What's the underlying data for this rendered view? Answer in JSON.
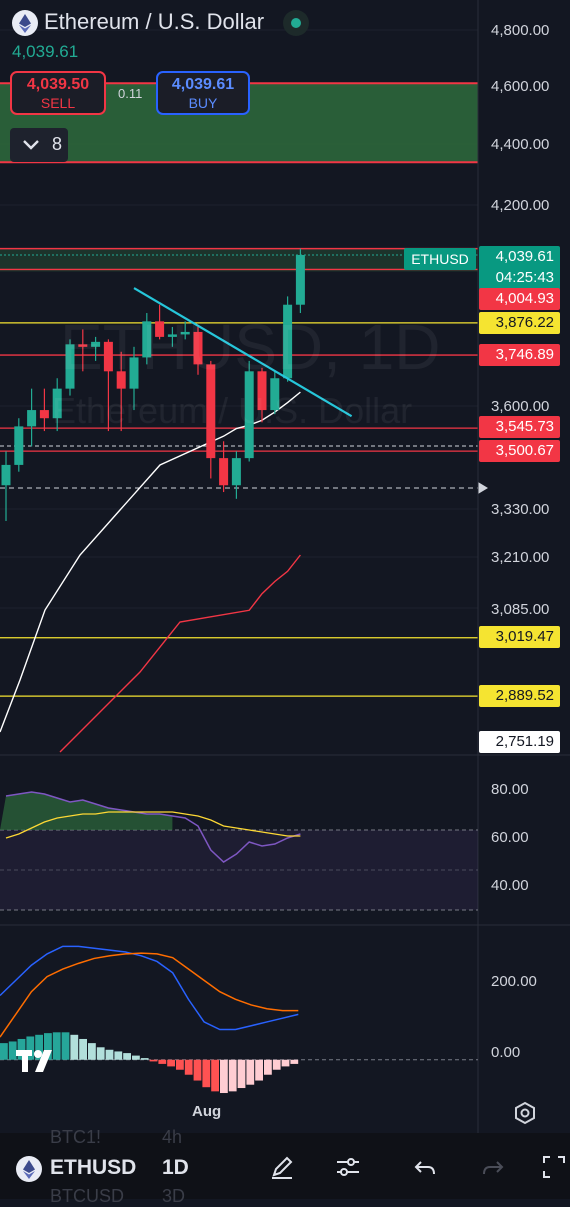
{
  "header": {
    "title": "Ethereum / U.S. Dollar",
    "last_price": "4,039.61",
    "sell_price": "4,039.50",
    "sell_label": "SELL",
    "spread": "0.11",
    "buy_price": "4,039.61",
    "buy_label": "BUY",
    "indicator_count": "8",
    "icons": [
      "ethereum-icon",
      "live-status-icon",
      "chevron-down-icon"
    ]
  },
  "watermark": {
    "symbol": "ETHUSD, 1D",
    "name": "Ethereum / U.S. Dollar"
  },
  "price_axis": {
    "labels": [
      "4,800.00",
      "4,600.00",
      "4,400.00",
      "4,200.00",
      "3,600.00",
      "3,330.00",
      "3,210.00",
      "3,085.00"
    ],
    "price_tags": [
      {
        "text": "4,004.93",
        "style": "red"
      },
      {
        "text": "3,876.22",
        "style": "yellow"
      },
      {
        "text": "3,746.89",
        "style": "red"
      },
      {
        "text": "3,545.73",
        "style": "red"
      },
      {
        "text": "3,500.67",
        "style": "red"
      },
      {
        "text": "3,019.47",
        "style": "yellow"
      },
      {
        "text": "2,889.52",
        "style": "yellow"
      },
      {
        "text": "2,751.19",
        "style": "white"
      }
    ],
    "live_tag": {
      "price": "4,039.61",
      "countdown": "04:25:43",
      "symbol": "ETHUSD"
    }
  },
  "rsi_axis": [
    "80.00",
    "60.00",
    "40.00"
  ],
  "macd_axis": [
    "200.00",
    "0.00"
  ],
  "x_axis": {
    "label": "Aug"
  },
  "toolbar": {
    "symbol": "ETHUSD",
    "timeframe": "1D",
    "ghost_items": [
      "BTC1!",
      "4h",
      "BTCUSD",
      "3D"
    ],
    "icons": [
      "ethereum-icon",
      "pencil-icon",
      "indicators-icon",
      "undo-icon",
      "redo-icon",
      "fullscreen-icon"
    ]
  },
  "colors": {
    "background": "#131722",
    "up": "#22ab94",
    "down": "#f23645",
    "trendline": "#26c6da",
    "ma_fast": "#ffffff",
    "ma_slow": "#f23645",
    "rsi": "#7e57c2",
    "rsi_signal": "#fdd835",
    "macd": "#2962ff",
    "macd_signal": "#ff6d00",
    "zone": "#2e6b3c"
  },
  "chart_data": [
    {
      "type": "candlestick",
      "title": "Ethereum / U.S. Dollar",
      "xlabel": "",
      "ylabel": "",
      "timeframe": "1D",
      "x_tick": "Aug",
      "ylim": [
        2700,
        4850
      ],
      "candles": [
        {
          "o": 3400,
          "h": 3500,
          "l": 3300,
          "c": 3460
        },
        {
          "o": 3460,
          "h": 3570,
          "l": 3440,
          "c": 3550
        },
        {
          "o": 3550,
          "h": 3650,
          "l": 3510,
          "c": 3590
        },
        {
          "o": 3590,
          "h": 3650,
          "l": 3540,
          "c": 3570
        },
        {
          "o": 3570,
          "h": 3680,
          "l": 3540,
          "c": 3650
        },
        {
          "o": 3650,
          "h": 3810,
          "l": 3630,
          "c": 3790
        },
        {
          "o": 3790,
          "h": 3850,
          "l": 3700,
          "c": 3780
        },
        {
          "o": 3780,
          "h": 3820,
          "l": 3730,
          "c": 3800
        },
        {
          "o": 3800,
          "h": 3810,
          "l": 3540,
          "c": 3700
        },
        {
          "o": 3700,
          "h": 3760,
          "l": 3540,
          "c": 3650
        },
        {
          "o": 3650,
          "h": 3780,
          "l": 3590,
          "c": 3740
        },
        {
          "o": 3740,
          "h": 3900,
          "l": 3720,
          "c": 3880
        },
        {
          "o": 3880,
          "h": 3920,
          "l": 3810,
          "c": 3820
        },
        {
          "o": 3820,
          "h": 3860,
          "l": 3780,
          "c": 3830
        },
        {
          "o": 3830,
          "h": 3880,
          "l": 3810,
          "c": 3840
        },
        {
          "o": 3840,
          "h": 3860,
          "l": 3690,
          "c": 3720
        },
        {
          "o": 3720,
          "h": 3730,
          "l": 3420,
          "c": 3480
        },
        {
          "o": 3480,
          "h": 3520,
          "l": 3380,
          "c": 3400
        },
        {
          "o": 3400,
          "h": 3500,
          "l": 3360,
          "c": 3480
        },
        {
          "o": 3480,
          "h": 3730,
          "l": 3470,
          "c": 3700
        },
        {
          "o": 3700,
          "h": 3710,
          "l": 3560,
          "c": 3590
        },
        {
          "o": 3590,
          "h": 3700,
          "l": 3580,
          "c": 3680
        },
        {
          "o": 3680,
          "h": 3940,
          "l": 3670,
          "c": 3920
        },
        {
          "o": 3920,
          "h": 4060,
          "l": 3900,
          "c": 4039.61
        }
      ],
      "moving_averages": [
        {
          "color": "#ffffff",
          "values": [
            null,
            null,
            null,
            null,
            null,
            null,
            null,
            null,
            null,
            null,
            null,
            null,
            null,
            null,
            null,
            null,
            null,
            3530,
            3545,
            3553,
            3565,
            3585,
            3610,
            3640
          ]
        },
        {
          "color": "#f23645",
          "values": [
            null,
            null,
            null,
            null,
            null,
            null,
            null,
            null,
            null,
            null,
            null,
            null,
            null,
            null,
            null,
            null,
            null,
            null,
            null,
            3080,
            3120,
            3150,
            3175,
            3215
          ]
        }
      ],
      "trendline": {
        "from": {
          "i": 10,
          "price": 3960
        },
        "to": {
          "i": 27,
          "price": 3575
        }
      },
      "zone": {
        "from": 4340,
        "to": 4610
      },
      "horizontal_levels": [
        {
          "price": 4004.93,
          "color": "#f23645"
        },
        {
          "price": 3876.22,
          "color": "#f5e431"
        },
        {
          "price": 3746.89,
          "color": "#f23645"
        },
        {
          "price": 3545.73,
          "color": "#f23645"
        },
        {
          "price": 3500.67,
          "color": "#f23645"
        },
        {
          "price": 3019.47,
          "color": "#f5e431"
        },
        {
          "price": 2889.52,
          "color": "#f5e431"
        }
      ]
    },
    {
      "type": "line",
      "title": "",
      "xlabel": "",
      "ylabel": "",
      "ylim": [
        30,
        100
      ],
      "series": [
        {
          "color": "#7e57c2",
          "values": [
            87,
            88,
            89,
            88,
            86,
            84,
            85,
            83,
            81,
            80,
            79,
            78,
            78,
            77,
            76,
            72,
            60,
            54,
            58,
            64,
            62,
            63,
            66,
            68
          ]
        },
        {
          "color": "#fdd835",
          "values": [
            66,
            68,
            71,
            74,
            76,
            77,
            78,
            78,
            79,
            79,
            79,
            79,
            79,
            79,
            78,
            77,
            75,
            72,
            71,
            70,
            69,
            68,
            67,
            67
          ]
        }
      ]
    },
    {
      "type": "bar",
      "title": "",
      "xlabel": "",
      "ylabel": "",
      "ylim": [
        -80,
        330
      ],
      "series": [
        {
          "name": "MACD",
          "color": "#2962ff",
          "values": [
            170,
            210,
            250,
            280,
            300,
            300,
            295,
            290,
            285,
            275,
            260,
            230,
            160,
            100,
            80,
            80,
            90,
            100,
            110,
            120
          ]
        },
        {
          "name": "Signal",
          "color": "#ff6d00",
          "values": [
            60,
            120,
            180,
            220,
            240,
            255,
            268,
            275,
            280,
            282,
            280,
            270,
            240,
            210,
            180,
            160,
            145,
            135,
            130,
            130
          ]
        }
      ],
      "histogram": [
        20,
        22,
        25,
        28,
        30,
        32,
        33,
        33,
        30,
        25,
        20,
        15,
        12,
        10,
        8,
        5,
        2,
        -2,
        -5,
        -8,
        -12,
        -18,
        -25,
        -33,
        -38,
        -40,
        -38,
        -34,
        -30,
        -25,
        -18,
        -12,
        -8,
        -5
      ]
    }
  ]
}
